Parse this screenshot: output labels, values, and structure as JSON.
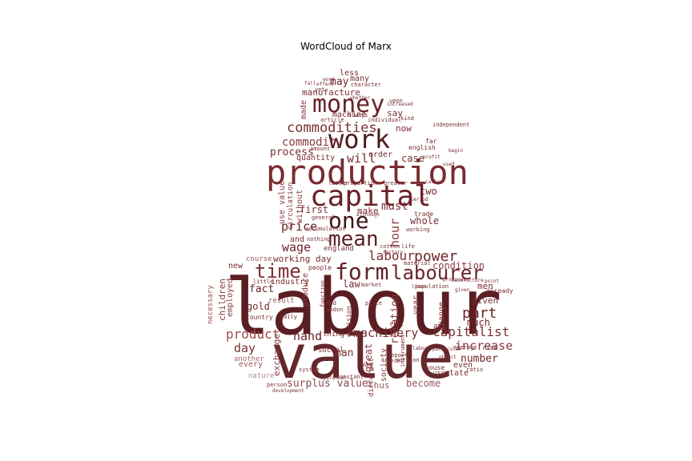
{
  "title": "WordCloud of Marx",
  "words": [
    {
      "text": "labour",
      "fill": "#5a1e22"
    },
    {
      "text": "value",
      "fill": "#64272b"
    },
    {
      "text": "production",
      "fill": "#7a2a30"
    },
    {
      "text": "capital",
      "fill": "#6b2126"
    },
    {
      "text": "money",
      "fill": "#6b2328"
    },
    {
      "text": "work",
      "fill": "#4c1a1d"
    },
    {
      "text": "one",
      "fill": "#3c1416"
    },
    {
      "text": "mean",
      "fill": "#5a2024"
    },
    {
      "text": "form",
      "fill": "#5e2226"
    },
    {
      "text": "labourer",
      "fill": "#6a2429"
    },
    {
      "text": "time",
      "fill": "#7a2e33"
    },
    {
      "text": "commodities",
      "fill": "#7a2e33"
    },
    {
      "text": "commodity",
      "fill": "#8a3a3e"
    },
    {
      "text": "power",
      "fill": "#6b2328"
    },
    {
      "text": "labour",
      "fill": "#7a2e33"
    },
    {
      "text": "capitalist",
      "fill": "#7a2e33"
    },
    {
      "text": "machinery",
      "fill": "#7a2e33"
    },
    {
      "text": "product",
      "fill": "#a04a50"
    },
    {
      "text": "hand",
      "fill": "#6b2328"
    },
    {
      "text": "day",
      "fill": "#7a2e33"
    },
    {
      "text": "increase",
      "fill": "#8a3a3e"
    },
    {
      "text": "part",
      "fill": "#6b2328"
    },
    {
      "text": "price",
      "fill": "#6b2328"
    },
    {
      "text": "wage",
      "fill": "#6b2328"
    },
    {
      "text": "process",
      "fill": "#7a2e33"
    },
    {
      "text": "will",
      "fill": "#7a2e33"
    },
    {
      "text": "must",
      "fill": "#7a2e33"
    },
    {
      "text": "first",
      "fill": "#7a2e33"
    },
    {
      "text": "hour",
      "fill": "#8a3a3e"
    },
    {
      "text": "two",
      "fill": "#6b2328"
    },
    {
      "text": "make",
      "fill": "#7a2e33"
    },
    {
      "text": "whole",
      "fill": "#7a2e33"
    },
    {
      "text": "relation",
      "fill": "#8a3a3e"
    },
    {
      "text": "working day",
      "fill": "#7a2e33"
    },
    {
      "text": "condition",
      "fill": "#8a3a3e"
    },
    {
      "text": "surplus value",
      "fill": "#8a4a4e"
    },
    {
      "text": "become",
      "fill": "#9a5a5e"
    },
    {
      "text": "thus",
      "fill": "#9a5a5e"
    },
    {
      "text": "number",
      "fill": "#6b2328"
    },
    {
      "text": "much",
      "fill": "#6b2328"
    },
    {
      "text": "given",
      "fill": "#7a2e33"
    },
    {
      "text": "men",
      "fill": "#7a2e33"
    },
    {
      "text": "man",
      "fill": "#7a2e33"
    },
    {
      "text": "law",
      "fill": "#7a2e33"
    },
    {
      "text": "fact",
      "fill": "#6b2328"
    },
    {
      "text": "gold",
      "fill": "#7a2e33"
    },
    {
      "text": "every",
      "fill": "#9a5a5e"
    },
    {
      "text": "great",
      "fill": "#8a3a3e"
    },
    {
      "text": "exchange",
      "fill": "#8a3a3e"
    },
    {
      "text": "industry",
      "fill": "#7a2e33"
    },
    {
      "text": "produce",
      "fill": "#8a3a3e"
    },
    {
      "text": "manufacture",
      "fill": "#7a2e33"
    },
    {
      "text": "may",
      "fill": "#6b2328"
    },
    {
      "text": "less",
      "fill": "#7a2e33"
    },
    {
      "text": "many",
      "fill": "#7a2e33"
    },
    {
      "text": "machine",
      "fill": "#7a2e33"
    },
    {
      "text": "say",
      "fill": "#7a2e33"
    },
    {
      "text": "now",
      "fill": "#7a2e33"
    },
    {
      "text": "made",
      "fill": "#8a3a3e"
    },
    {
      "text": "order",
      "fill": "#7a2e33"
    },
    {
      "text": "case",
      "fill": "#7a2e33"
    },
    {
      "text": "quantity",
      "fill": "#7a2e33"
    },
    {
      "text": "use value",
      "fill": "#8a3a3e"
    },
    {
      "text": "circulation",
      "fill": "#8a3a3e"
    },
    {
      "text": "without",
      "fill": "#8a3a3e"
    },
    {
      "text": "england",
      "fill": "#7a2e33"
    },
    {
      "text": "and",
      "fill": "#7a2e33"
    },
    {
      "text": "children",
      "fill": "#8a3a3e"
    },
    {
      "text": "employed",
      "fill": "#8a3a3e"
    },
    {
      "text": "necessary",
      "fill": "#a04a50"
    },
    {
      "text": "new",
      "fill": "#7a2e33"
    },
    {
      "text": "course",
      "fill": "#9a5a5e"
    },
    {
      "text": "result",
      "fill": "#9a5a5e"
    },
    {
      "text": "another",
      "fill": "#a06a6e"
    },
    {
      "text": "nature",
      "fill": "#b08a8e"
    },
    {
      "text": "state",
      "fill": "#7a2e33"
    },
    {
      "text": "even",
      "fill": "#7a2e33"
    },
    {
      "text": "use",
      "fill": "#7a2e33"
    },
    {
      "text": "act",
      "fill": "#7a2e33"
    },
    {
      "text": "change",
      "fill": "#8a3a3e"
    },
    {
      "text": "year",
      "fill": "#8a3a3e"
    },
    {
      "text": "society",
      "fill": "#8a3a3e"
    },
    {
      "text": "different",
      "fill": "#8a3a3e"
    },
    {
      "text": "social",
      "fill": "#7a2e33"
    },
    {
      "text": "thing",
      "fill": "#7a2e33"
    },
    {
      "text": "way",
      "fill": "#7a2e33"
    },
    {
      "text": "people",
      "fill": "#7a2e33"
    },
    {
      "text": "english",
      "fill": "#7a2e33"
    },
    {
      "text": "far",
      "fill": "#7a2e33"
    },
    {
      "text": "trade",
      "fill": "#7a2e33"
    },
    {
      "text": "already",
      "fill": "#7a2e33"
    },
    {
      "text": "rise",
      "fill": "#7a2e33"
    },
    {
      "text": "house",
      "fill": "#7a2e33"
    },
    {
      "text": "division",
      "fill": "#7a2e33"
    },
    {
      "text": "country",
      "fill": "#7a2e33"
    },
    {
      "text": "upon",
      "fill": "#7a2e33"
    },
    {
      "text": "article",
      "fill": "#7a2e33"
    },
    {
      "text": "individual",
      "fill": "#7a2e33"
    },
    {
      "text": "character",
      "fill": "#7a2e33"
    },
    {
      "text": "general",
      "fill": "#7a2e33"
    },
    {
      "text": "accumulation",
      "fill": "#7a2e33"
    },
    {
      "text": "nothing",
      "fill": "#7a2e33"
    },
    {
      "text": "proportion",
      "fill": "#7a2e33"
    },
    {
      "text": "latter",
      "fill": "#7a2e33"
    },
    {
      "text": "greater",
      "fill": "#7a2e33"
    },
    {
      "text": "cotton",
      "fill": "#7a2e33"
    },
    {
      "text": "life",
      "fill": "#7a2e33"
    },
    {
      "text": "material",
      "fill": "#7a2e33"
    },
    {
      "text": "instrument",
      "fill": "#7a2e33"
    },
    {
      "text": "place",
      "fill": "#7a2e33"
    },
    {
      "text": "find",
      "fill": "#7a2e33"
    },
    {
      "text": "market",
      "fill": "#7a2e33"
    },
    {
      "text": "mere",
      "fill": "#7a2e33"
    },
    {
      "text": "report",
      "fill": "#7a2e33"
    },
    {
      "text": "system",
      "fill": "#7a2e33"
    },
    {
      "text": "person",
      "fill": "#7a2e33"
    },
    {
      "text": "amount",
      "fill": "#7a2e33"
    },
    {
      "text": "always",
      "fill": "#7a2e33"
    },
    {
      "text": "yet",
      "fill": "#7a2e33"
    },
    {
      "text": "working",
      "fill": "#7a2e33"
    },
    {
      "text": "independent",
      "fill": "#7a2e33"
    },
    {
      "text": "land",
      "fill": "#7a2e33"
    },
    {
      "text": "london",
      "fill": "#7a2e33"
    },
    {
      "text": "daily",
      "fill": "#7a2e33"
    },
    {
      "text": "little",
      "fill": "#7a2e33"
    },
    {
      "text": "constant",
      "fill": "#7a2e33"
    },
    {
      "text": "function",
      "fill": "#7a2e33"
    },
    {
      "text": "population",
      "fill": "#7a2e33"
    },
    {
      "text": "portion",
      "fill": "#7a2e33"
    },
    {
      "text": "kind",
      "fill": "#7a2e33"
    },
    {
      "text": "average",
      "fill": "#7a2e33"
    },
    {
      "text": "ratio",
      "fill": "#7a2e33"
    },
    {
      "text": "effect",
      "fill": "#7a2e33"
    },
    {
      "text": "fall",
      "fill": "#7a2e33"
    },
    {
      "text": "linen",
      "fill": "#7a2e33"
    },
    {
      "text": "produced",
      "fill": "#7a2e33"
    },
    {
      "text": "point",
      "fill": "#7a2e33"
    },
    {
      "text": "called",
      "fill": "#7a2e33"
    },
    {
      "text": "profit",
      "fill": "#7a2e33"
    },
    {
      "text": "period",
      "fill": "#7a2e33"
    },
    {
      "text": "increased",
      "fill": "#7a2e33"
    },
    {
      "text": "whether",
      "fill": "#7a2e33"
    },
    {
      "text": "although",
      "fill": "#7a2e33"
    },
    {
      "text": "factory",
      "fill": "#7a2e33"
    },
    {
      "text": "operation",
      "fill": "#7a2e33"
    },
    {
      "text": "development",
      "fill": "#7a2e33"
    },
    {
      "text": "begin",
      "fill": "#7a2e33"
    },
    {
      "text": "used",
      "fill": "#7a2e33"
    },
    {
      "text": "given",
      "fill": "#7a2e33"
    },
    {
      "text": "manufacture",
      "fill": "#7a2e33"
    },
    {
      "text": "particular",
      "fill": "#7a2e33"
    },
    {
      "text": "word",
      "fill": "#7a2e33"
    },
    {
      "text": "object",
      "fill": "#7a2e33"
    },
    {
      "text": "labour",
      "fill": "#7a2e33"
    }
  ]
}
